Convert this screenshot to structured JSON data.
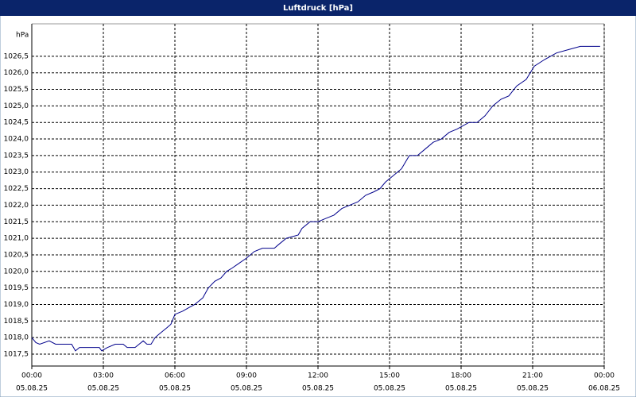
{
  "chart_data": {
    "type": "line",
    "title": "Luftdruck [hPa]",
    "y_unit": "hPa",
    "x": [
      0,
      0.17,
      0.33,
      0.73,
      1,
      1.67,
      1.83,
      2,
      2.83,
      2.93,
      3.17,
      3.5,
      3.83,
      4,
      4.33,
      4.5,
      4.67,
      4.83,
      5,
      5.17,
      5.33,
      5.67,
      5.83,
      6,
      6.33,
      6.57,
      6.83,
      7.17,
      7.4,
      7.67,
      7.93,
      8.17,
      8.4,
      8.6,
      9,
      9.33,
      9.67,
      10.17,
      10.33,
      10.67,
      11.17,
      11.33,
      11.67,
      12,
      12.33,
      12.67,
      13,
      13.33,
      13.67,
      14,
      14.33,
      14.6,
      14.83,
      15.17,
      15.5,
      15.83,
      16.17,
      16.5,
      16.83,
      17.17,
      17.5,
      17.83,
      18.33,
      18.67,
      19,
      19.33,
      19.67,
      20,
      20.33,
      20.73,
      21.07,
      21.5,
      22,
      22.5,
      23,
      23.83
    ],
    "series": [
      {
        "name": "Luftdruck",
        "color": "#00008b",
        "values": [
          1018.0,
          1017.85,
          1017.8,
          1017.9,
          1017.8,
          1017.8,
          1017.6,
          1017.7,
          1017.7,
          1017.6,
          1017.7,
          1017.8,
          1017.8,
          1017.7,
          1017.7,
          1017.8,
          1017.9,
          1017.8,
          1017.8,
          1018.0,
          1018.1,
          1018.3,
          1018.4,
          1018.7,
          1018.8,
          1018.9,
          1019.0,
          1019.2,
          1019.5,
          1019.7,
          1019.8,
          1020.0,
          1020.1,
          1020.2,
          1020.4,
          1020.6,
          1020.7,
          1020.7,
          1020.8,
          1021.0,
          1021.1,
          1021.3,
          1021.5,
          1021.5,
          1021.6,
          1021.7,
          1021.9,
          1022.0,
          1022.1,
          1022.3,
          1022.4,
          1022.5,
          1022.7,
          1022.9,
          1023.1,
          1023.5,
          1023.5,
          1023.7,
          1023.9,
          1024.0,
          1024.2,
          1024.3,
          1024.5,
          1024.5,
          1024.7,
          1025.0,
          1025.2,
          1025.3,
          1025.6,
          1025.8,
          1026.2,
          1026.4,
          1026.6,
          1026.7,
          1026.8,
          1026.8
        ]
      }
    ],
    "xlim": [
      0,
      24
    ],
    "xticks": [
      {
        "value": 0,
        "label": "00:00"
      },
      {
        "value": 3,
        "label": "03:00"
      },
      {
        "value": 6,
        "label": "06:00"
      },
      {
        "value": 9,
        "label": "09:00"
      },
      {
        "value": 12,
        "label": "12:00"
      },
      {
        "value": 15,
        "label": "15:00"
      },
      {
        "value": 18,
        "label": "18:00"
      },
      {
        "value": 21,
        "label": "21:00"
      },
      {
        "value": 24,
        "label": "00:00"
      }
    ],
    "x_tick_dates": [
      "05.08.25",
      "05.08.25",
      "05.08.25",
      "05.08.25",
      "05.08.25",
      "05.08.25",
      "05.08.25",
      "05.08.25",
      "06.08.25"
    ],
    "ylim": [
      1017.14,
      1027.48
    ],
    "yticks": [
      {
        "value": 1017.5,
        "label": "1017,5"
      },
      {
        "value": 1018,
        "label": "1018,0"
      },
      {
        "value": 1018.5,
        "label": "1018,5"
      },
      {
        "value": 1019,
        "label": "1019,0"
      },
      {
        "value": 1019.5,
        "label": "1019,5"
      },
      {
        "value": 1020,
        "label": "1020,0"
      },
      {
        "value": 1020.5,
        "label": "1020,5"
      },
      {
        "value": 1021,
        "label": "1021,0"
      },
      {
        "value": 1021.5,
        "label": "1021,5"
      },
      {
        "value": 1022,
        "label": "1022,0"
      },
      {
        "value": 1022.5,
        "label": "1022,5"
      },
      {
        "value": 1023,
        "label": "1023,0"
      },
      {
        "value": 1023.5,
        "label": "1023,5"
      },
      {
        "value": 1024,
        "label": "1024,0"
      },
      {
        "value": 1024.5,
        "label": "1024,5"
      },
      {
        "value": 1025,
        "label": "1025,0"
      },
      {
        "value": 1025.5,
        "label": "1025,5"
      },
      {
        "value": 1026,
        "label": "1026,0"
      },
      {
        "value": 1026.5,
        "label": "1026,5"
      }
    ],
    "grid": true
  }
}
